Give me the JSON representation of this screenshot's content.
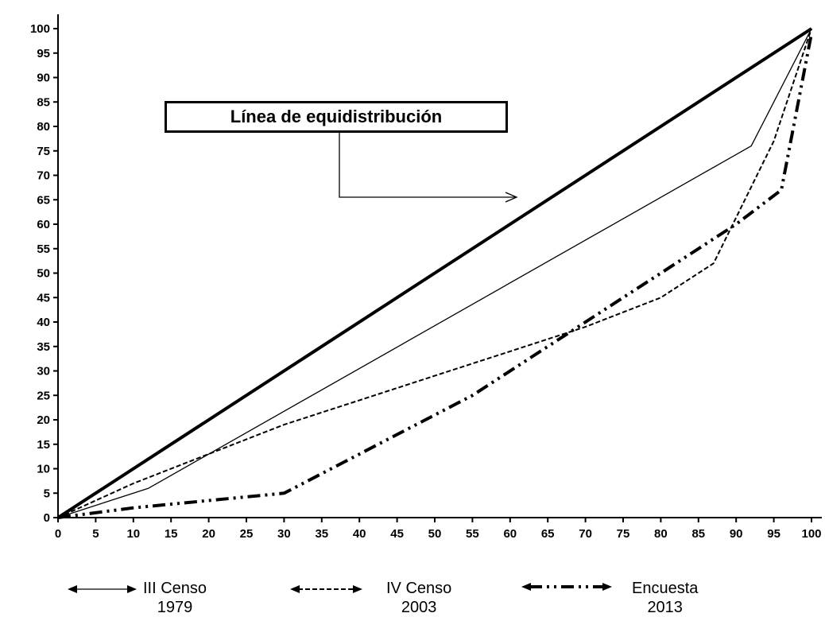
{
  "chart_data": {
    "type": "line",
    "title": "",
    "xlabel": "",
    "ylabel": "",
    "xlim": [
      0,
      100
    ],
    "ylim": [
      0,
      100
    ],
    "x_ticks": [
      0,
      5,
      10,
      15,
      20,
      25,
      30,
      35,
      40,
      45,
      50,
      55,
      60,
      65,
      70,
      75,
      80,
      85,
      90,
      95,
      100
    ],
    "y_ticks": [
      0,
      5,
      10,
      15,
      20,
      25,
      30,
      35,
      40,
      45,
      50,
      55,
      60,
      65,
      70,
      75,
      80,
      85,
      90,
      95,
      100
    ],
    "grid": false,
    "annotation": "Línea de equidistribución",
    "series": [
      {
        "id": "equi",
        "style": "thick-solid",
        "color": "#000000",
        "x": [
          0,
          100
        ],
        "y": [
          0,
          100
        ]
      },
      {
        "id": "s1979",
        "label": [
          "III Censo",
          "1979"
        ],
        "style": "thin-solid",
        "color": "#000000",
        "x": [
          0,
          12,
          92,
          100
        ],
        "y": [
          0,
          6,
          76,
          100
        ]
      },
      {
        "id": "s2003",
        "label": [
          "IV Censo",
          "2003"
        ],
        "style": "dashed",
        "color": "#000000",
        "x": [
          0,
          10,
          20,
          30,
          40,
          50,
          60,
          70,
          80,
          87,
          95,
          100
        ],
        "y": [
          0,
          7,
          13,
          19,
          24,
          29,
          34,
          39,
          45,
          52,
          77,
          100
        ]
      },
      {
        "id": "s2013",
        "label": [
          "Encuesta",
          "2013"
        ],
        "style": "dash-dot",
        "color": "#000000",
        "x": [
          0,
          10,
          30,
          55,
          75,
          90,
          96,
          100
        ],
        "y": [
          0,
          2,
          5,
          25,
          45,
          60,
          67,
          99
        ]
      }
    ]
  }
}
